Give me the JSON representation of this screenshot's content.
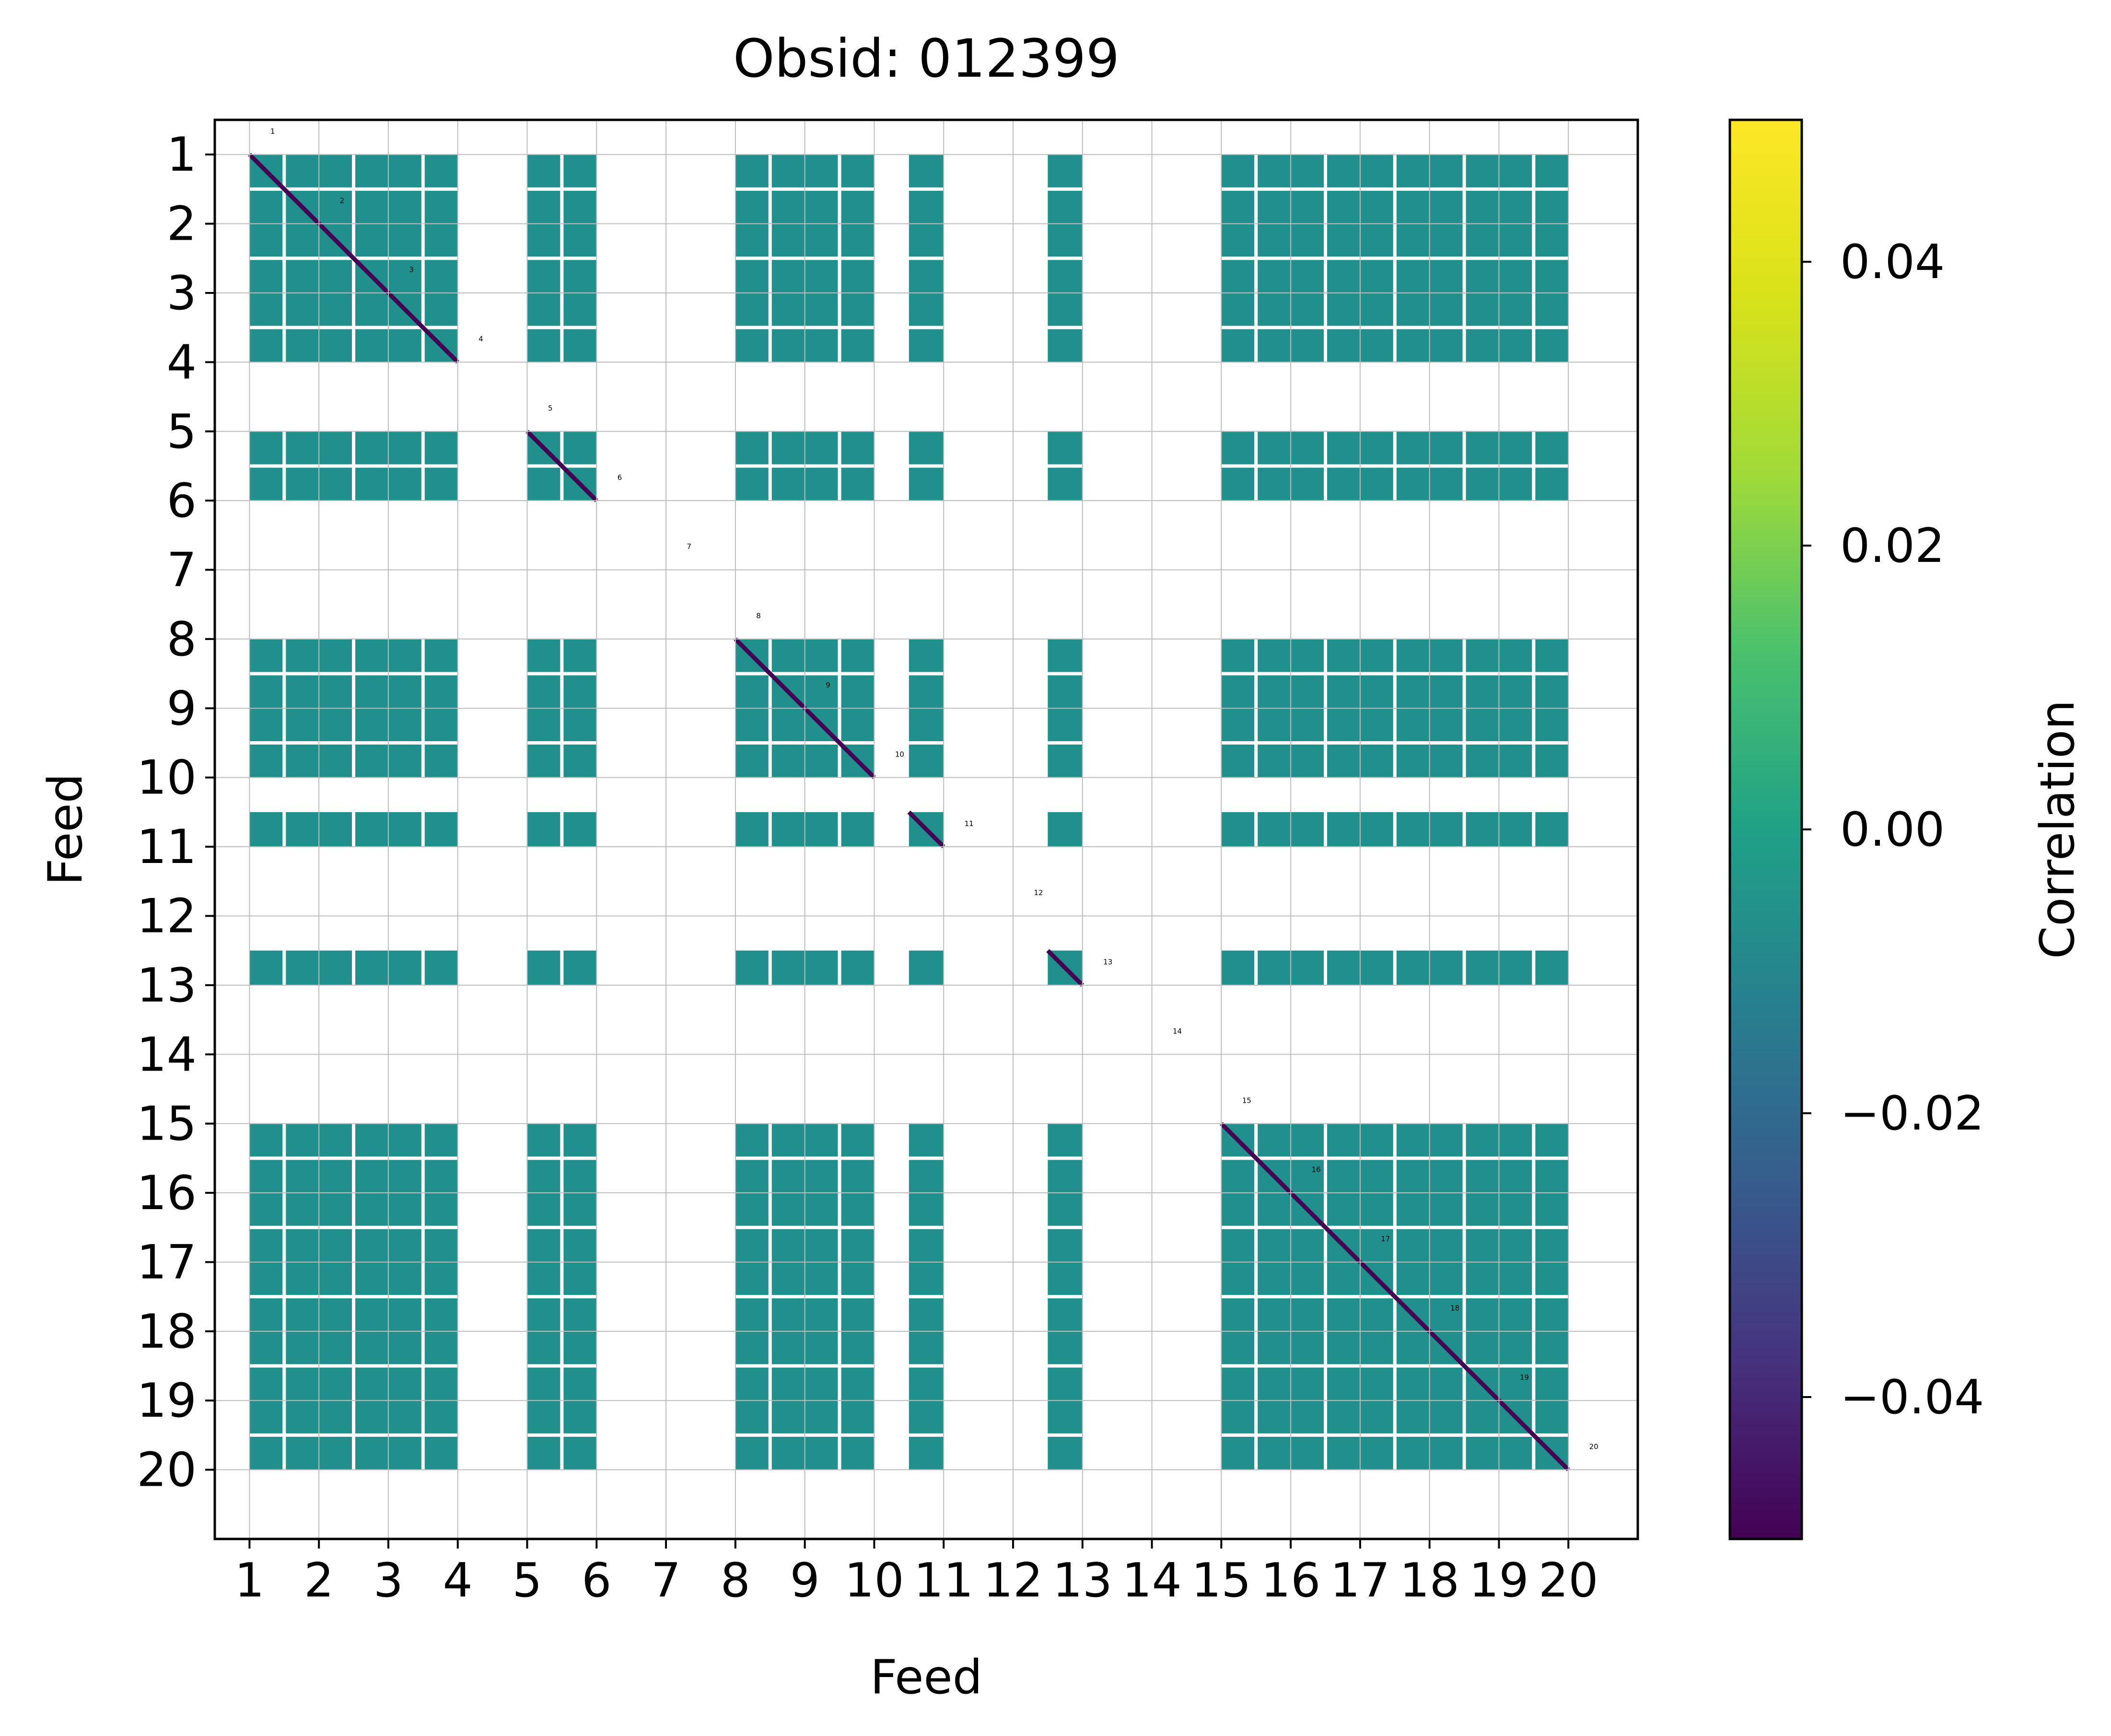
{
  "chart_data": {
    "type": "heatmap",
    "title": "Obsid: 012399",
    "xlabel": "Feed",
    "ylabel": "Feed",
    "x_tick_labels": [
      "1",
      "2",
      "3",
      "4",
      "5",
      "6",
      "7",
      "8",
      "9",
      "10",
      "11",
      "12",
      "13",
      "14",
      "15",
      "16",
      "17",
      "18",
      "19",
      "20"
    ],
    "y_tick_labels": [
      "1",
      "2",
      "3",
      "4",
      "5",
      "6",
      "7",
      "8",
      "9",
      "10",
      "11",
      "12",
      "13",
      "14",
      "15",
      "16",
      "17",
      "18",
      "19",
      "20"
    ],
    "block_labels": [
      "1",
      "2",
      "3",
      "4",
      "5",
      "6",
      "7",
      "8",
      "9",
      "10",
      "11",
      "12",
      "13",
      "14",
      "15",
      "16",
      "17",
      "18",
      "19",
      "20"
    ],
    "active_feeds": [
      1,
      2,
      3,
      5,
      8,
      9,
      10,
      12,
      15,
      16,
      17,
      18,
      19
    ],
    "partial_feeds": [
      {
        "feed": 10,
        "from": 0.5,
        "to": 1.0
      },
      {
        "feed": 12,
        "from": 0.5,
        "to": 1.0
      }
    ],
    "dead_feeds": [
      4,
      6,
      7,
      11,
      13,
      14,
      20
    ],
    "grid": true,
    "cell_value": 0.0,
    "diagonal_value": -0.05,
    "colorbar": {
      "label": "Correlation",
      "vmin": -0.05,
      "vmax": 0.05,
      "ticks": [
        0.04,
        0.02,
        0.0,
        -0.02,
        -0.04
      ],
      "tick_labels": [
        "0.04",
        "0.02",
        "0.00",
        "−0.02",
        "−0.04"
      ],
      "colormap": "viridis"
    },
    "colors": {
      "cell": "#21908d",
      "grid_line": "#ffffff",
      "diagonal": "#440154",
      "feed_divider": "#bdbdbd"
    }
  }
}
